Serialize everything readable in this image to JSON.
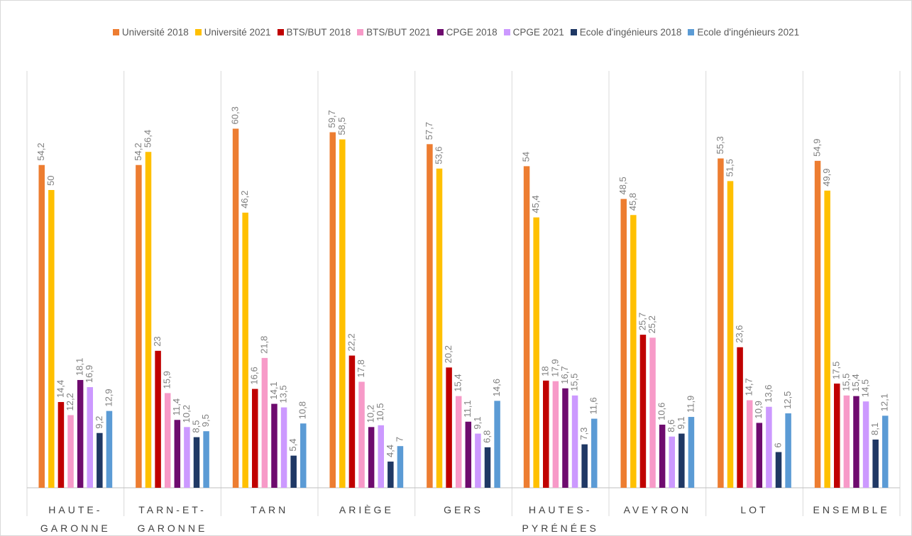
{
  "chart_data": {
    "type": "bar",
    "categories": [
      "HAUTE-GARONNE",
      "TARN-ET-GARONNE",
      "TARN",
      "ARIÈGE",
      "GERS",
      "HAUTES-PYRÉNÉES",
      "AVEYRON",
      "LOT",
      "ENSEMBLE"
    ],
    "ylim": [
      0,
      70
    ],
    "legend": "top",
    "series": [
      {
        "name": "Université 2018",
        "color": "#ed7d31",
        "values": [
          54.2,
          54.2,
          60.3,
          59.7,
          57.7,
          54,
          48.5,
          55.3,
          54.9
        ],
        "value_labels": [
          "54,2",
          "54,2",
          "60,3",
          "59,7",
          "57,7",
          "54",
          "48,5",
          "55,3",
          "54,9"
        ]
      },
      {
        "name": "Université 2021",
        "color": "#ffc000",
        "values": [
          50,
          56.4,
          46.2,
          58.5,
          53.6,
          45.4,
          45.8,
          51.5,
          49.9
        ],
        "value_labels": [
          "50",
          "56,4",
          "46,2",
          "58,5",
          "53,6",
          "45,4",
          "45,8",
          "51,5",
          "49,9"
        ]
      },
      {
        "name": "BTS/BUT 2018",
        "color": "#c00000",
        "values": [
          14.4,
          23,
          16.6,
          22.2,
          20.2,
          18,
          25.7,
          23.6,
          17.5
        ],
        "value_labels": [
          "14,4",
          "23",
          "16,6",
          "22,2",
          "20,2",
          "18",
          "25,7",
          "23,6",
          "17,5"
        ]
      },
      {
        "name": "BTS/BUT 2021",
        "color": "#f79ac8",
        "values": [
          12.2,
          15.9,
          21.8,
          17.8,
          15.4,
          17.9,
          25.2,
          14.7,
          15.5
        ],
        "value_labels": [
          "12,2",
          "15,9",
          "21,8",
          "17,8",
          "15,4",
          "17,9",
          "25,2",
          "14,7",
          "15,5"
        ]
      },
      {
        "name": "CPGE 2018",
        "color": "#6e0b6e",
        "values": [
          18.1,
          11.4,
          14.1,
          10.2,
          11.1,
          16.7,
          10.6,
          10.9,
          15.4
        ],
        "value_labels": [
          "18,1",
          "11,4",
          "14,1",
          "10,2",
          "11,1",
          "16,7",
          "10,6",
          "10,9",
          "15,4"
        ]
      },
      {
        "name": "CPGE 2021",
        "color": "#cc99ff",
        "values": [
          16.9,
          10.2,
          13.5,
          10.5,
          9.1,
          15.5,
          8.6,
          13.6,
          14.5
        ],
        "value_labels": [
          "16,9",
          "10,2",
          "13,5",
          "10,5",
          "9,1",
          "15,5",
          "8,6",
          "13,6",
          "14,5"
        ]
      },
      {
        "name": "Ecole d'ingénieurs 2018",
        "color": "#1f3864",
        "values": [
          9.2,
          8.5,
          5.4,
          4.4,
          6.8,
          7.3,
          9.1,
          6,
          8.1
        ],
        "value_labels": [
          "9,2",
          "8,5",
          "5,4",
          "4,4",
          "6,8",
          "7,3",
          "9,1",
          "6",
          "8,1"
        ]
      },
      {
        "name": "Ecole d'ingénieurs 2021",
        "color": "#5b9bd5",
        "values": [
          12.9,
          9.5,
          10.8,
          7,
          14.6,
          11.6,
          11.9,
          12.5,
          12.1
        ],
        "value_labels": [
          "12,9",
          "9,5",
          "10,8",
          "7",
          "14,6",
          "11,6",
          "11,9",
          "12,5",
          "12,1"
        ]
      }
    ]
  }
}
